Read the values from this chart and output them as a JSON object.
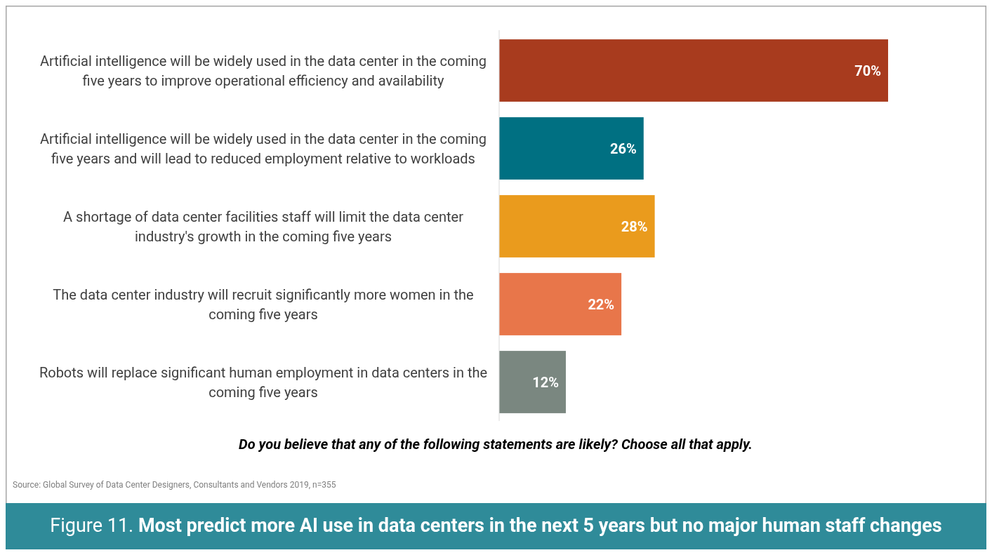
{
  "chart_data": {
    "type": "bar",
    "orientation": "horizontal",
    "title": "Figure 11. Most predict more AI use in data centers in the next 5 years but no major human staff changes",
    "xlabel": "Do you believe that any of the following statements are likely? Choose all that apply.",
    "categories": [
      "Artificial intelligence will be widely used in the data center in the coming five years to improve operational efficiency and availability",
      "Artificial intelligence will be widely used in the data center in the coming five years and will lead to reduced employment relative to workloads",
      "A shortage of data center facilities staff will limit the data center industry's growth in the coming five years",
      "The data center industry will recruit significantly more women in the coming five years",
      "Robots will replace significant human employment in data centers in the coming five years"
    ],
    "values": [
      70,
      26,
      28,
      22,
      12
    ],
    "colors": [
      "#a83b1e",
      "#007082",
      "#ea9b1d",
      "#e8764a",
      "#7a8780"
    ],
    "value_labels": [
      "70%",
      "26%",
      "28%",
      "22%",
      "12%"
    ],
    "xlim": [
      0,
      70
    ],
    "annotations": [
      "Source: Global Survey of Data Center Designers, Consultants and Vendors 2019, n=355"
    ]
  }
}
